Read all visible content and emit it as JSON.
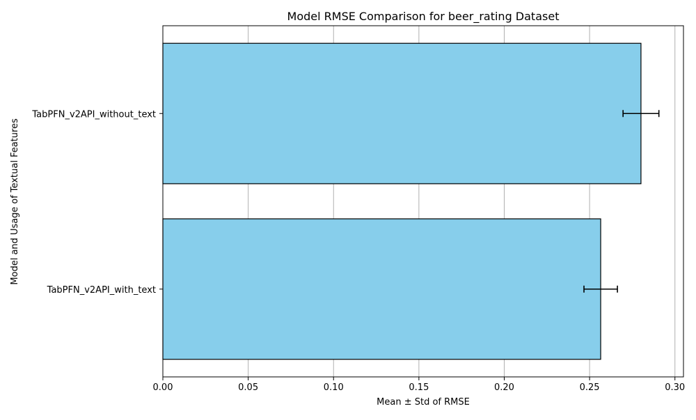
{
  "chart_data": {
    "type": "bar",
    "orientation": "horizontal",
    "title": "Model RMSE Comparison for beer_rating Dataset",
    "xlabel": "Mean ± Std of RMSE",
    "ylabel": "Model and Usage of Textual Features",
    "categories": [
      "TabPFN_v2API_with_text",
      "TabPFN_v2API_without_text"
    ],
    "values": [
      0.2565,
      0.2801
    ],
    "errors": [
      0.0098,
      0.0105
    ],
    "xlim": [
      0,
      0.305
    ],
    "xticks": [
      0.0,
      0.05,
      0.1,
      0.15,
      0.2,
      0.25,
      0.3
    ],
    "xtick_labels": [
      "0.00",
      "0.05",
      "0.10",
      "0.15",
      "0.20",
      "0.25",
      "0.30"
    ],
    "grid": "x-axis vertical lines",
    "legend": "none",
    "colors": {
      "bar_fill": "#87ceeb",
      "bar_edge": "#000000",
      "error_bar": "#000000",
      "grid": "#b0b0b0"
    }
  }
}
